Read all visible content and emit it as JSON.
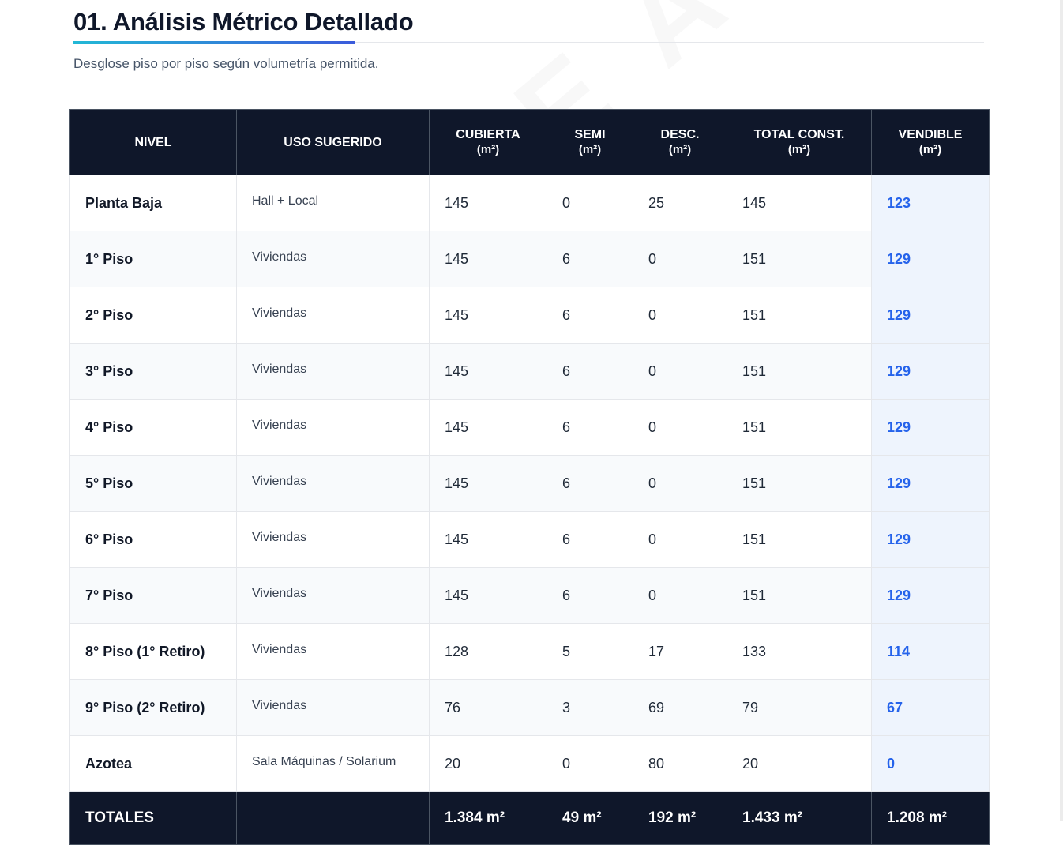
{
  "header": {
    "title": "01. Análisis Métrico Detallado",
    "subtitle": "Desglose piso por piso según volumetría permitida."
  },
  "watermark": "E A",
  "table": {
    "columns": [
      {
        "label": "NIVEL",
        "unit": ""
      },
      {
        "label": "USO SUGERIDO",
        "unit": ""
      },
      {
        "label": "CUBIERTA",
        "unit": "(m²)"
      },
      {
        "label": "SEMI",
        "unit": "(m²)"
      },
      {
        "label": "DESC.",
        "unit": "(m²)"
      },
      {
        "label": "TOTAL CONST.",
        "unit": "(m²)"
      },
      {
        "label": "VENDIBLE",
        "unit": "(m²)"
      }
    ],
    "rows": [
      {
        "nivel": "Planta Baja",
        "uso": "Hall + Local",
        "cubierta": "145",
        "semi": "0",
        "desc": "25",
        "total": "145",
        "vendible": "123"
      },
      {
        "nivel": "1° Piso",
        "uso": "Viviendas",
        "cubierta": "145",
        "semi": "6",
        "desc": "0",
        "total": "151",
        "vendible": "129"
      },
      {
        "nivel": "2° Piso",
        "uso": "Viviendas",
        "cubierta": "145",
        "semi": "6",
        "desc": "0",
        "total": "151",
        "vendible": "129"
      },
      {
        "nivel": "3° Piso",
        "uso": "Viviendas",
        "cubierta": "145",
        "semi": "6",
        "desc": "0",
        "total": "151",
        "vendible": "129"
      },
      {
        "nivel": "4° Piso",
        "uso": "Viviendas",
        "cubierta": "145",
        "semi": "6",
        "desc": "0",
        "total": "151",
        "vendible": "129"
      },
      {
        "nivel": "5° Piso",
        "uso": "Viviendas",
        "cubierta": "145",
        "semi": "6",
        "desc": "0",
        "total": "151",
        "vendible": "129"
      },
      {
        "nivel": "6° Piso",
        "uso": "Viviendas",
        "cubierta": "145",
        "semi": "6",
        "desc": "0",
        "total": "151",
        "vendible": "129"
      },
      {
        "nivel": "7° Piso",
        "uso": "Viviendas",
        "cubierta": "145",
        "semi": "6",
        "desc": "0",
        "total": "151",
        "vendible": "129"
      },
      {
        "nivel": "8° Piso (1° Retiro)",
        "uso": "Viviendas",
        "cubierta": "128",
        "semi": "5",
        "desc": "17",
        "total": "133",
        "vendible": "114"
      },
      {
        "nivel": "9° Piso (2° Retiro)",
        "uso": "Viviendas",
        "cubierta": "76",
        "semi": "3",
        "desc": "69",
        "total": "79",
        "vendible": "67"
      },
      {
        "nivel": "Azotea",
        "uso": "Sala Máquinas / Solarium",
        "cubierta": "20",
        "semi": "0",
        "desc": "80",
        "total": "20",
        "vendible": "0"
      }
    ],
    "totals": {
      "label": "TOTALES",
      "uso": "",
      "cubierta": "1.384 m²",
      "semi": "49 m²",
      "desc": "192 m²",
      "total": "1.433 m²",
      "vendible": "1.208 m²"
    }
  },
  "colors": {
    "header_bg": "#0f172a",
    "vendible_text": "#2563eb",
    "vendible_bg": "#eef4fd",
    "accent_start": "#22b8d6",
    "accent_end": "#3b5bdb"
  }
}
